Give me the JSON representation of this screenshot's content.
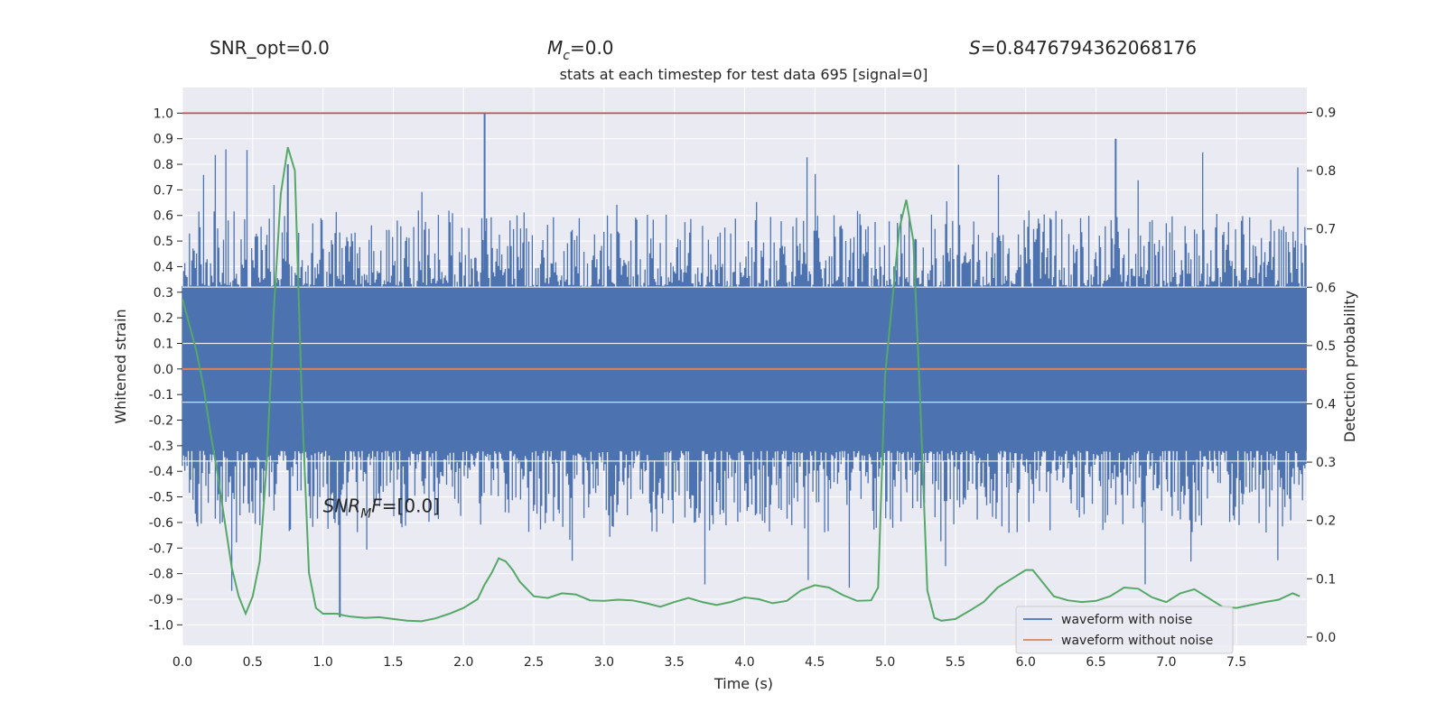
{
  "header": {
    "snr_opt": "SNR_opt=0.0",
    "mc_symbol": "M",
    "mc_sub": "c",
    "mc_value": "=0.0",
    "s_symbol": "S",
    "s_value": "=0.8476794362068176"
  },
  "title": "stats at each timestep for test data 695 [signal=0]",
  "annotation": {
    "symbol": "SNR",
    "sub": "M",
    "tail": "F",
    "value": "=[0.0]",
    "x": 1.0,
    "y": -0.56
  },
  "colors": {
    "background": "#eaeaf2",
    "grid": "#ffffff",
    "noisy": "#4c72b0",
    "clean": "#dd8452",
    "detection": "#55a868",
    "threshold": "#c44e52"
  },
  "chart_data": {
    "type": "line",
    "xlabel": "Time (s)",
    "ylabel": "Whitened strain",
    "y2label": "Detection probability",
    "xlim": [
      0.0,
      8.0
    ],
    "ylim": [
      -1.08,
      1.1
    ],
    "y2lim": [
      -0.0141,
      0.9425
    ],
    "x_ticks": [
      "0.0",
      "0.5",
      "1.0",
      "1.5",
      "2.0",
      "2.5",
      "3.0",
      "3.5",
      "4.0",
      "4.5",
      "5.0",
      "5.5",
      "6.0",
      "6.5",
      "7.0",
      "7.5"
    ],
    "y_ticks": [
      "-1.0",
      "-0.9",
      "-0.8",
      "-0.7",
      "-0.6",
      "-0.5",
      "-0.4",
      "-0.3",
      "-0.2",
      "-0.1",
      "0.0",
      "0.1",
      "0.2",
      "0.3",
      "0.4",
      "0.5",
      "0.6",
      "0.7",
      "0.8",
      "0.9",
      "1.0"
    ],
    "y2_ticks": [
      "0.0",
      "0.1",
      "0.2",
      "0.3",
      "0.4",
      "0.5",
      "0.6",
      "0.7",
      "0.8",
      "0.9"
    ],
    "grid": true,
    "legend_position": "lower-right",
    "series": [
      {
        "name": "waveform with noise",
        "axis": "left",
        "kind": "noise-envelope",
        "band": [
          -0.32,
          0.32
        ],
        "peak_range": [
          -1.0,
          1.0
        ]
      },
      {
        "name": "waveform without noise",
        "axis": "left",
        "kind": "constant",
        "value": 0.0
      },
      {
        "axis": "left",
        "kind": "hline",
        "value": 1.0
      },
      {
        "axis": "right",
        "kind": "line",
        "x": [
          0.0,
          0.1,
          0.15,
          0.2,
          0.25,
          0.3,
          0.35,
          0.4,
          0.45,
          0.5,
          0.55,
          0.6,
          0.65,
          0.7,
          0.75,
          0.8,
          0.85,
          0.9,
          0.95,
          1.0,
          1.05,
          1.1,
          1.15,
          1.2,
          1.3,
          1.4,
          1.5,
          1.6,
          1.7,
          1.8,
          1.9,
          2.0,
          2.1,
          2.15,
          2.2,
          2.25,
          2.3,
          2.35,
          2.4,
          2.5,
          2.6,
          2.7,
          2.8,
          2.9,
          3.0,
          3.1,
          3.2,
          3.3,
          3.4,
          3.5,
          3.6,
          3.7,
          3.8,
          3.9,
          4.0,
          4.1,
          4.2,
          4.3,
          4.4,
          4.5,
          4.6,
          4.7,
          4.8,
          4.9,
          4.95,
          5.0,
          5.1,
          5.15,
          5.2,
          5.25,
          5.3,
          5.35,
          5.4,
          5.5,
          5.6,
          5.7,
          5.8,
          5.9,
          6.0,
          6.05,
          6.1,
          6.2,
          6.3,
          6.4,
          6.5,
          6.6,
          6.7,
          6.8,
          6.9,
          7.0,
          7.1,
          7.2,
          7.3,
          7.4,
          7.5,
          7.6,
          7.7,
          7.8,
          7.9,
          7.95
        ],
        "values": [
          0.58,
          0.49,
          0.43,
          0.35,
          0.28,
          0.2,
          0.12,
          0.07,
          0.04,
          0.07,
          0.13,
          0.3,
          0.56,
          0.76,
          0.84,
          0.8,
          0.4,
          0.11,
          0.05,
          0.04,
          0.04,
          0.04,
          0.037,
          0.035,
          0.033,
          0.034,
          0.031,
          0.028,
          0.027,
          0.032,
          0.04,
          0.05,
          0.065,
          0.09,
          0.11,
          0.135,
          0.13,
          0.115,
          0.095,
          0.07,
          0.067,
          0.075,
          0.073,
          0.063,
          0.062,
          0.064,
          0.063,
          0.058,
          0.052,
          0.06,
          0.067,
          0.06,
          0.055,
          0.06,
          0.068,
          0.065,
          0.058,
          0.062,
          0.08,
          0.089,
          0.085,
          0.072,
          0.062,
          0.063,
          0.085,
          0.45,
          0.7,
          0.75,
          0.68,
          0.4,
          0.08,
          0.033,
          0.028,
          0.031,
          0.045,
          0.06,
          0.085,
          0.1,
          0.115,
          0.115,
          0.1,
          0.07,
          0.063,
          0.06,
          0.062,
          0.07,
          0.085,
          0.083,
          0.068,
          0.06,
          0.075,
          0.082,
          0.067,
          0.052,
          0.05,
          0.055,
          0.06,
          0.064,
          0.075,
          0.07
        ]
      }
    ]
  }
}
